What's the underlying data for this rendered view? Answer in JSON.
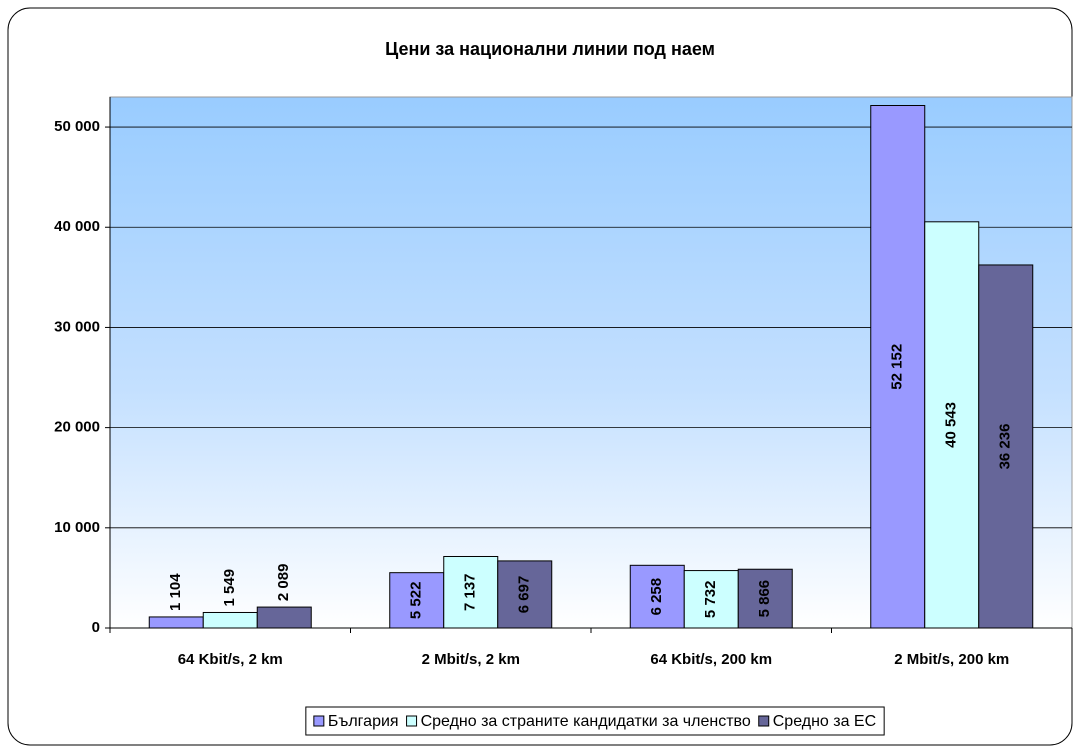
{
  "chart_data": {
    "type": "bar",
    "title": "Цени за национални линии под наем",
    "categories": [
      "64 Kbit/s, 2 km",
      "2 Mbit/s, 2 km",
      "64 Kbit/s, 200 km",
      "2 Mbit/s, 200 km"
    ],
    "series": [
      {
        "name": "България",
        "color": "#9999ff",
        "values": [
          1104,
          5522,
          6258,
          52152
        ],
        "value_labels": [
          "1 104",
          "5 522",
          "6 258",
          "52 152"
        ]
      },
      {
        "name": "Средно за страните кандидатки за членство",
        "color": "#ccffff",
        "values": [
          1549,
          7137,
          5732,
          40543
        ],
        "value_labels": [
          "1 549",
          "7 137",
          "5 732",
          "40 543"
        ]
      },
      {
        "name": "Средно за ЕС",
        "color": "#666699",
        "values": [
          2089,
          6697,
          5866,
          36236
        ],
        "value_labels": [
          "2 089",
          "6 697",
          "5 866",
          "36 236"
        ]
      }
    ],
    "ylim": [
      0,
      53000
    ],
    "yticks": [
      0,
      {
        "value": 10000,
        "label": "10 000"
      },
      {
        "value": 20000,
        "label": "20 000"
      },
      {
        "value": 30000,
        "label": "30 000"
      },
      {
        "value": 40000,
        "label": "40 000"
      },
      {
        "value": 50000,
        "label": "50 000"
      }
    ],
    "grid": true,
    "legend": "bottom"
  }
}
